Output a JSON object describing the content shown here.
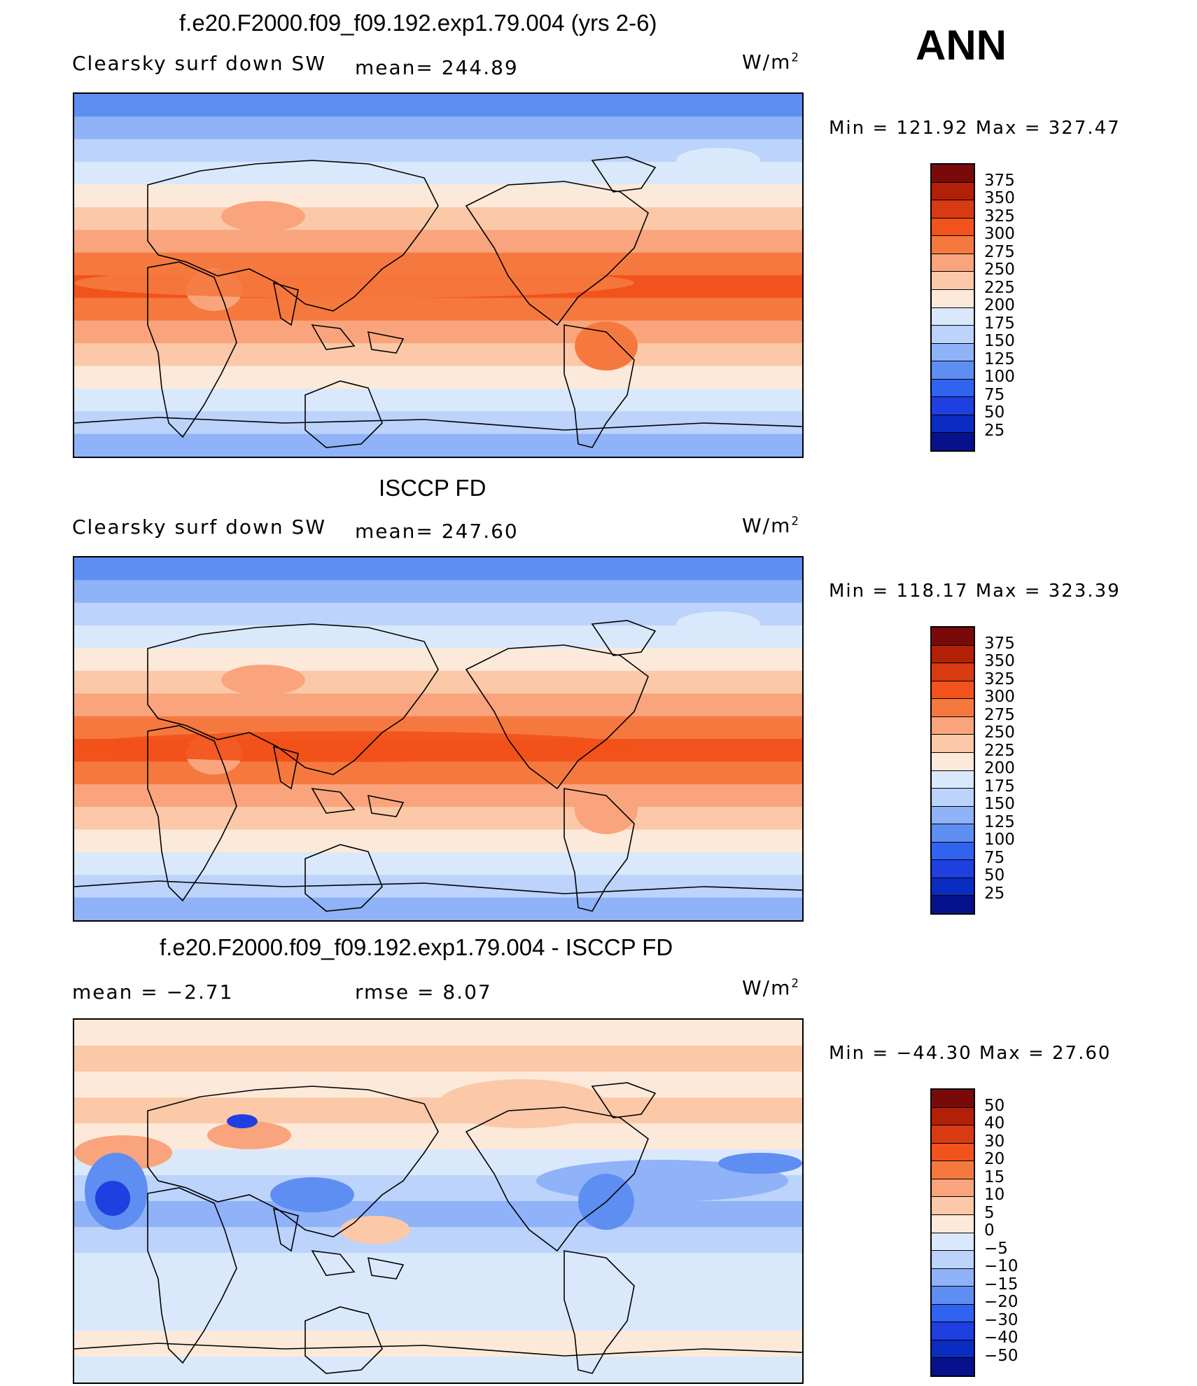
{
  "season": "ANN",
  "units_base": "W/m",
  "units_exp": "2",
  "panels": [
    {
      "title": "f.e20.F2000.f09_f09.192.exp1.79.004 (yrs 2-6)",
      "left_label": "Clearsky surf down SW",
      "mid_label": "mean= 244.89",
      "minmax": "Min = 121.92 Max = 327.47",
      "scale": "abs"
    },
    {
      "title": "ISCCP FD",
      "left_label": "Clearsky surf down SW",
      "mid_label": "mean= 247.60",
      "minmax": "Min = 118.17 Max = 323.39",
      "scale": "abs"
    },
    {
      "title": "f.e20.F2000.f09_f09.192.exp1.79.004 - ISCCP FD",
      "left_label": "mean =   −2.71",
      "mid_label": "rmse =    8.07",
      "minmax": "Min = −44.30 Max =  27.60",
      "scale": "diff"
    }
  ],
  "abs_levels": [
    "375",
    "350",
    "325",
    "300",
    "275",
    "250",
    "225",
    "200",
    "175",
    "150",
    "125",
    "100",
    "75",
    "50",
    "25"
  ],
  "abs_colors": [
    "#7a0a0a",
    "#b32008",
    "#d83a12",
    "#f2521b",
    "#f5793f",
    "#f9a47c",
    "#fbc9a8",
    "#fde9da",
    "#d9e9fb",
    "#bcd3fb",
    "#8fb2f9",
    "#5f8ef2",
    "#2f63f0",
    "#1f3fe0",
    "#0b2cc0",
    "#06128c"
  ],
  "diff_levels": [
    "50",
    "40",
    "30",
    "20",
    "15",
    "10",
    "5",
    "0",
    "−5",
    "−10",
    "−15",
    "−20",
    "−30",
    "−40",
    "−50"
  ],
  "diff_colors": [
    "#7a0a0a",
    "#b32008",
    "#d83a12",
    "#f2521b",
    "#f5793f",
    "#f9a47c",
    "#fbc9a8",
    "#fde9da",
    "#d9e9fb",
    "#bcd3fb",
    "#8fb2f9",
    "#5f8ef2",
    "#2f63f0",
    "#1f3fe0",
    "#0b2cc0",
    "#06128c"
  ],
  "map_data": {
    "type": "global-contour-map",
    "projection": "cylindrical equidistant, centered on Pacific",
    "abs_band_colors_north_to_south": [
      "#5f8ef2",
      "#8fb2f9",
      "#bcd3fb",
      "#d9e9fb",
      "#fde9da",
      "#fbc9a8",
      "#f9a47c",
      "#f5793f",
      "#f2521b",
      "#f5793f",
      "#f9a47c",
      "#fbc9a8",
      "#fde9da",
      "#d9e9fb",
      "#bcd3fb",
      "#8fb2f9"
    ],
    "diff_band_colors_north_to_south": [
      "#fde9da",
      "#fbc9a8",
      "#fde9da",
      "#fbc9a8",
      "#fde9da",
      "#d9e9fb",
      "#bcd3fb",
      "#8fb2f9",
      "#bcd3fb",
      "#d9e9fb",
      "#d9e9fb",
      "#d9e9fb",
      "#fde9da",
      "#d9e9fb"
    ]
  }
}
